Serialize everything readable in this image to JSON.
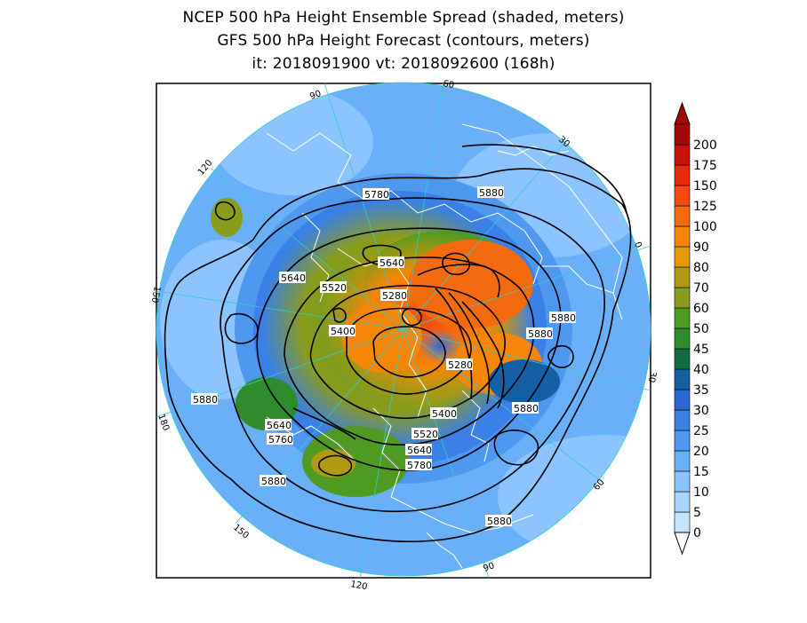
{
  "title": {
    "line1": "NCEP 500 hPa Height Ensemble Spread (shaded, meters)",
    "line2": "GFS 500 hPa Height Forecast (contours, meters)",
    "line3": "it: 2018091900       vt: 2018092600 (168h)"
  },
  "colors": {
    "frame": "#000000",
    "contour": "#000000",
    "coastline": "#ffffff",
    "graticule": "#33cccc",
    "background": "#ffffff"
  },
  "colorbar": {
    "ticks": [
      "0",
      "5",
      "10",
      "15",
      "20",
      "25",
      "30",
      "35",
      "40",
      "45",
      "50",
      "60",
      "70",
      "80",
      "90",
      "100",
      "125",
      "150",
      "175",
      "200"
    ],
    "colors": [
      "#c4e4ff",
      "#a8d4ff",
      "#8cc4ff",
      "#6ab0f8",
      "#4e98f0",
      "#3a80e6",
      "#2a68d8",
      "#155fa5",
      "#136c44",
      "#2f8b2c",
      "#4f9a23",
      "#8a9c1c",
      "#b09a12",
      "#e89a06",
      "#f58607",
      "#f46a0e",
      "#f44a10",
      "#ea2a0c",
      "#c9130a",
      "#a10a08"
    ]
  },
  "map": {
    "type": "north-polar-stereographic",
    "longitude_labels": [
      "60",
      "30",
      "0",
      "30",
      "60",
      "90",
      "120",
      "150",
      "180",
      "150",
      "120",
      "90"
    ],
    "contour_labels": [
      "5780",
      "5880",
      "5640",
      "5520",
      "5280",
      "5400",
      "5640",
      "5880",
      "5880",
      "5280",
      "5880",
      "5400",
      "5520",
      "5640",
      "5640",
      "5760",
      "5880",
      "5780",
      "5880",
      "5880"
    ]
  }
}
